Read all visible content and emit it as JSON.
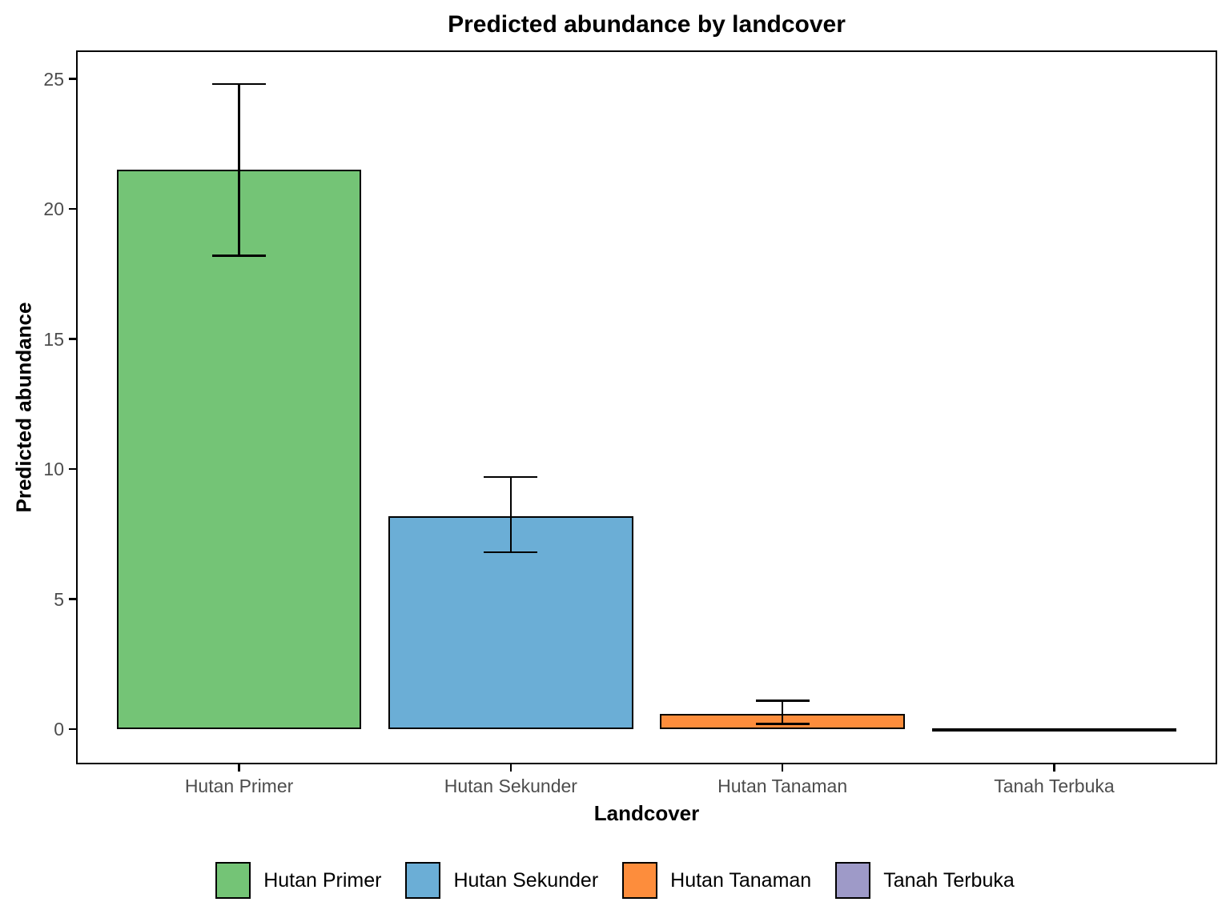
{
  "chart_data": {
    "type": "bar",
    "title": "Predicted abundance by landcover",
    "xlabel": "Landcover",
    "ylabel": "Predicted abundance",
    "categories": [
      "Hutan Primer",
      "Hutan Sekunder",
      "Hutan Tanaman",
      "Tanah Terbuka"
    ],
    "values": [
      21.5,
      8.2,
      0.6,
      0.02
    ],
    "errors": [
      {
        "low": 18.2,
        "high": 24.8
      },
      {
        "low": 6.8,
        "high": 9.7
      },
      {
        "low": 0.2,
        "high": 1.1
      },
      null
    ],
    "colors": [
      "#74C476",
      "#6BAED6",
      "#FD8D3C",
      "#9E9AC8"
    ],
    "yticks": [
      0,
      5,
      10,
      15,
      20,
      25
    ],
    "ylim": [
      -1.35,
      26.1
    ],
    "grid": false,
    "legend_position": "bottom",
    "legend": [
      {
        "label": "Hutan Primer",
        "color": "#74C476"
      },
      {
        "label": "Hutan Sekunder",
        "color": "#6BAED6"
      },
      {
        "label": "Hutan Tanaman",
        "color": "#FD8D3C"
      },
      {
        "label": "Tanah Terbuka",
        "color": "#9E9AC8"
      }
    ],
    "styles": {
      "axis_text_color": "#4D4D4D",
      "axis_line_color": "#000000",
      "bar_outline_color": "#000000",
      "background": "#FFFFFF"
    }
  }
}
